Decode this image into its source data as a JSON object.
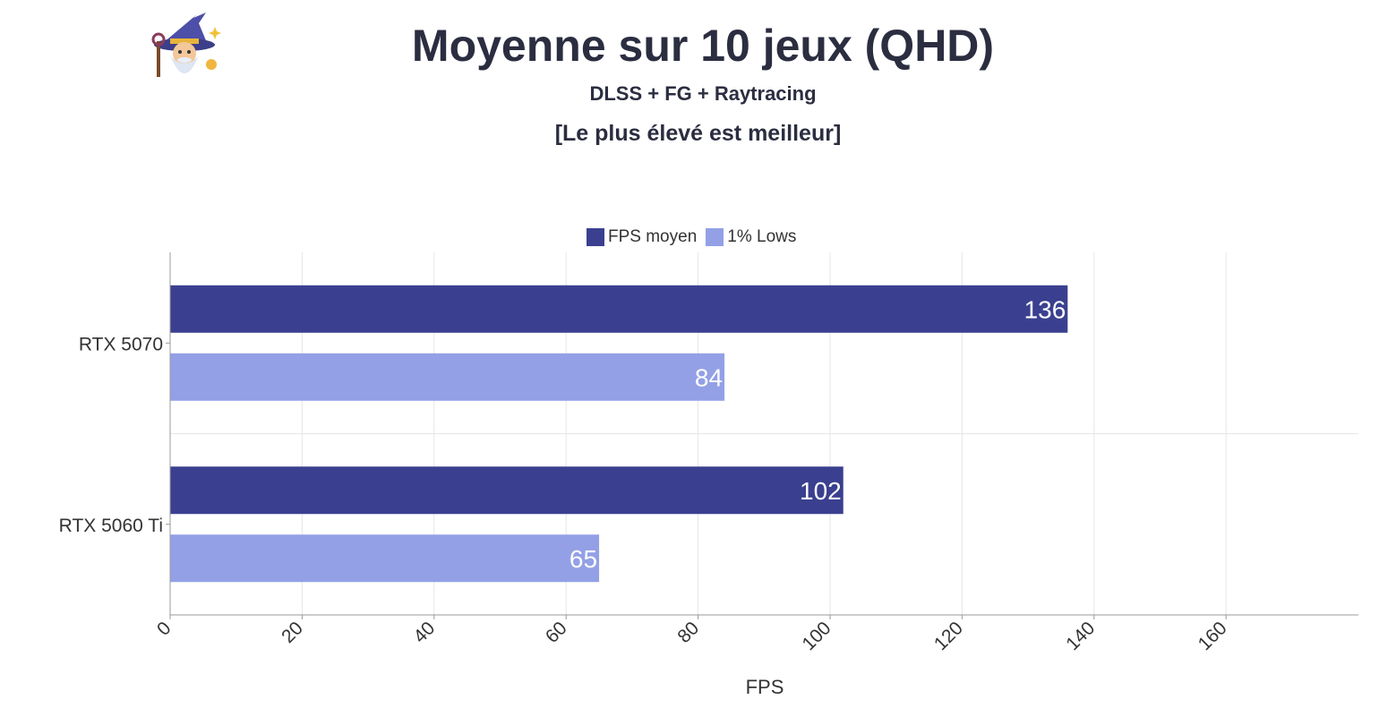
{
  "chart_data": {
    "type": "bar",
    "orientation": "horizontal",
    "title": "Moyenne sur 10 jeux (QHD)",
    "subtitle": "DLSS + FG + Raytracing",
    "subtitle2": "[Le plus élevé est meilleur]",
    "categories": [
      "RTX 5070",
      "RTX 5060 Ti"
    ],
    "series": [
      {
        "name": "FPS moyen",
        "color": "#3a408f",
        "values": [
          136,
          102
        ]
      },
      {
        "name": "1% Lows",
        "color": "#93a0e6",
        "values": [
          84,
          65
        ]
      }
    ],
    "xlabel": "FPS",
    "xticks": [
      "0",
      "20",
      "40",
      "60",
      "80",
      "100",
      "120",
      "140",
      "160"
    ],
    "xlim": [
      0,
      180
    ],
    "legend": "top-center",
    "grid": true
  },
  "logo": {
    "name": "wizard-mascot-icon"
  }
}
